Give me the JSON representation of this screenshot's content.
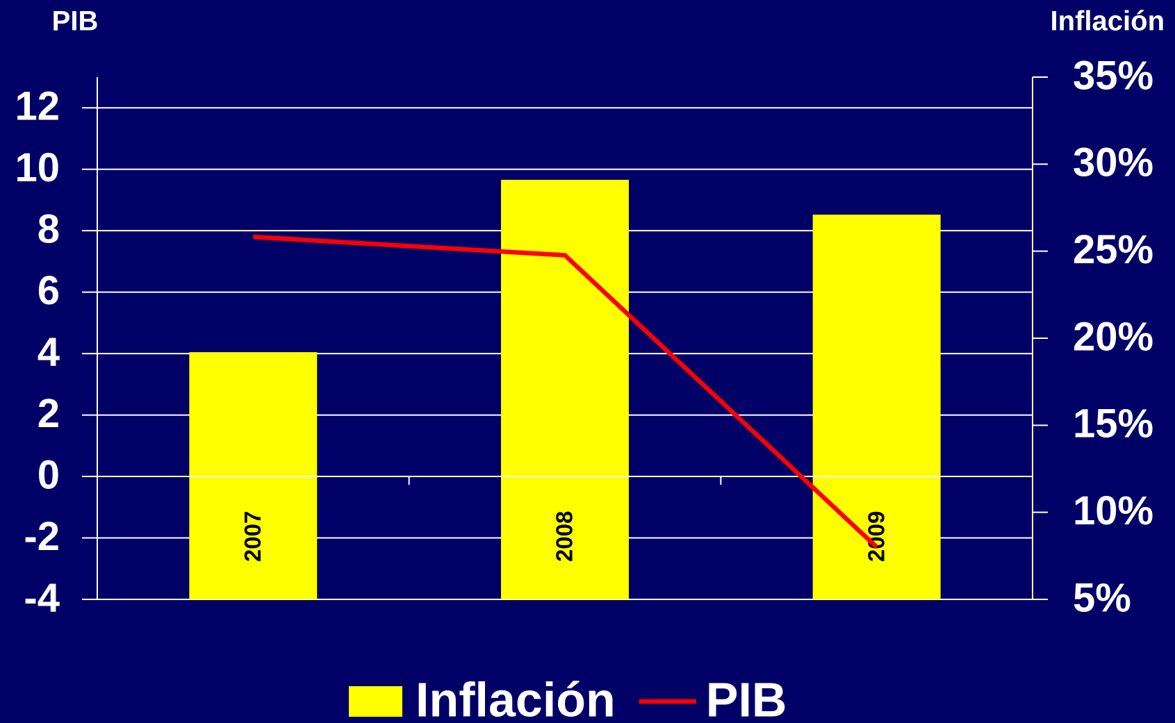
{
  "chart_data": {
    "type": "bar",
    "y_label": "PIB",
    "y2_label": "Inflación",
    "categories": [
      "2007",
      "2008",
      "2009"
    ],
    "series": [
      {
        "name": "Inflación",
        "type": "bar",
        "axis": "y2",
        "color": "#ffff00",
        "values": [
          19.2,
          29.1,
          27.1
        ]
      },
      {
        "name": "PIB",
        "type": "line",
        "color": "#ff0000",
        "values": [
          7.8,
          7.2,
          -2.3
        ]
      }
    ],
    "ylim": [
      -4,
      13
    ],
    "yticks": [
      -4,
      -2,
      0,
      2,
      4,
      6,
      8,
      10,
      12
    ],
    "y2lim": [
      5,
      35
    ],
    "y2ticks": [
      {
        "value": 5,
        "label": "5%"
      },
      {
        "value": 10,
        "label": "10%"
      },
      {
        "value": 15,
        "label": "15%"
      },
      {
        "value": 20,
        "label": "20%"
      },
      {
        "value": 25,
        "label": "25%"
      },
      {
        "value": 30,
        "label": "30%"
      },
      {
        "value": 35,
        "label": "35%"
      }
    ],
    "grid": true,
    "legend": "bottom"
  }
}
